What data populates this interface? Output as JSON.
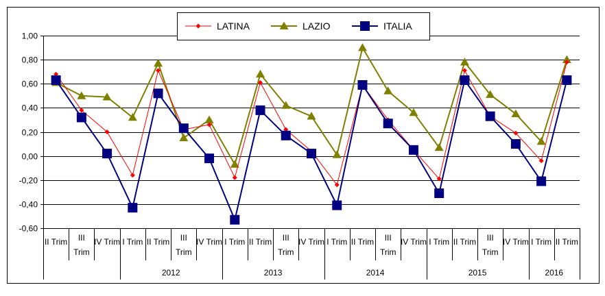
{
  "chart_data": {
    "type": "line",
    "categories": [
      "II Trim",
      "III Trim",
      "IV Trim",
      "I Trim",
      "II Trim",
      "III Trim",
      "IV Trim",
      "I Trim",
      "II Trim",
      "III Trim",
      "IV Trim",
      "I Trim",
      "II Trim",
      "III Trim",
      "IV Trim",
      "I Trim",
      "II Trim",
      "III Trim",
      "IV Trim",
      "I Trim",
      "II Trim"
    ],
    "year_groups": [
      {
        "label": "",
        "start": 0,
        "end": 2
      },
      {
        "label": "2012",
        "start": 3,
        "end": 6
      },
      {
        "label": "2013",
        "start": 7,
        "end": 10
      },
      {
        "label": "2014",
        "start": 11,
        "end": 14
      },
      {
        "label": "2015",
        "start": 15,
        "end": 18
      },
      {
        "label": "2016",
        "start": 19,
        "end": 20
      }
    ],
    "series": [
      {
        "name": "LATINA",
        "color": "#ff0000",
        "marker": "diamond",
        "values": [
          0.68,
          0.38,
          0.2,
          -0.16,
          0.71,
          0.22,
          0.26,
          -0.18,
          0.61,
          0.22,
          0.04,
          -0.24,
          0.59,
          0.3,
          0.05,
          -0.19,
          0.71,
          0.33,
          0.19,
          -0.04,
          0.78
        ]
      },
      {
        "name": "LAZIO",
        "color": "#808000",
        "marker": "triangle",
        "values": [
          0.61,
          0.5,
          0.49,
          0.32,
          0.77,
          0.15,
          0.3,
          -0.07,
          0.68,
          0.42,
          0.33,
          0.01,
          0.9,
          0.54,
          0.36,
          0.07,
          0.78,
          0.51,
          0.35,
          0.12,
          0.8
        ]
      },
      {
        "name": "ITALIA",
        "color": "#000080",
        "marker": "square",
        "values": [
          0.63,
          0.32,
          0.02,
          -0.43,
          0.52,
          0.23,
          -0.02,
          -0.53,
          0.38,
          0.17,
          0.02,
          -0.41,
          0.59,
          0.27,
          0.05,
          -0.31,
          0.63,
          0.33,
          0.1,
          -0.21,
          0.63
        ]
      }
    ],
    "yticks": [
      "1,00",
      "0,80",
      "0,60",
      "0,40",
      "0,20",
      "0,00",
      "-0,20",
      "-0,40",
      "-0,60"
    ],
    "ylim": [
      -0.6,
      1.0
    ],
    "grid": true,
    "legend_position": "top"
  }
}
